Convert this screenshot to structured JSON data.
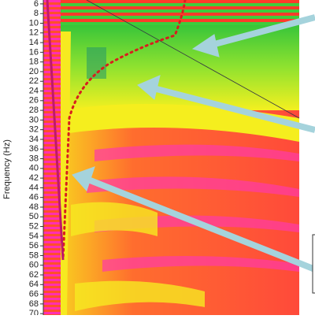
{
  "chart_data": {
    "type": "heatmap",
    "y_label": "Frequency (Hz)",
    "ylim": [
      5.2,
      70.3
    ],
    "yticks": [
      6,
      8,
      10,
      12,
      14,
      16,
      18,
      20,
      22,
      24,
      26,
      28,
      30,
      32,
      34,
      36,
      38,
      40,
      42,
      44,
      46,
      48,
      50,
      52,
      54,
      56,
      58,
      60,
      62,
      64,
      66,
      68,
      70
    ]
  }
}
